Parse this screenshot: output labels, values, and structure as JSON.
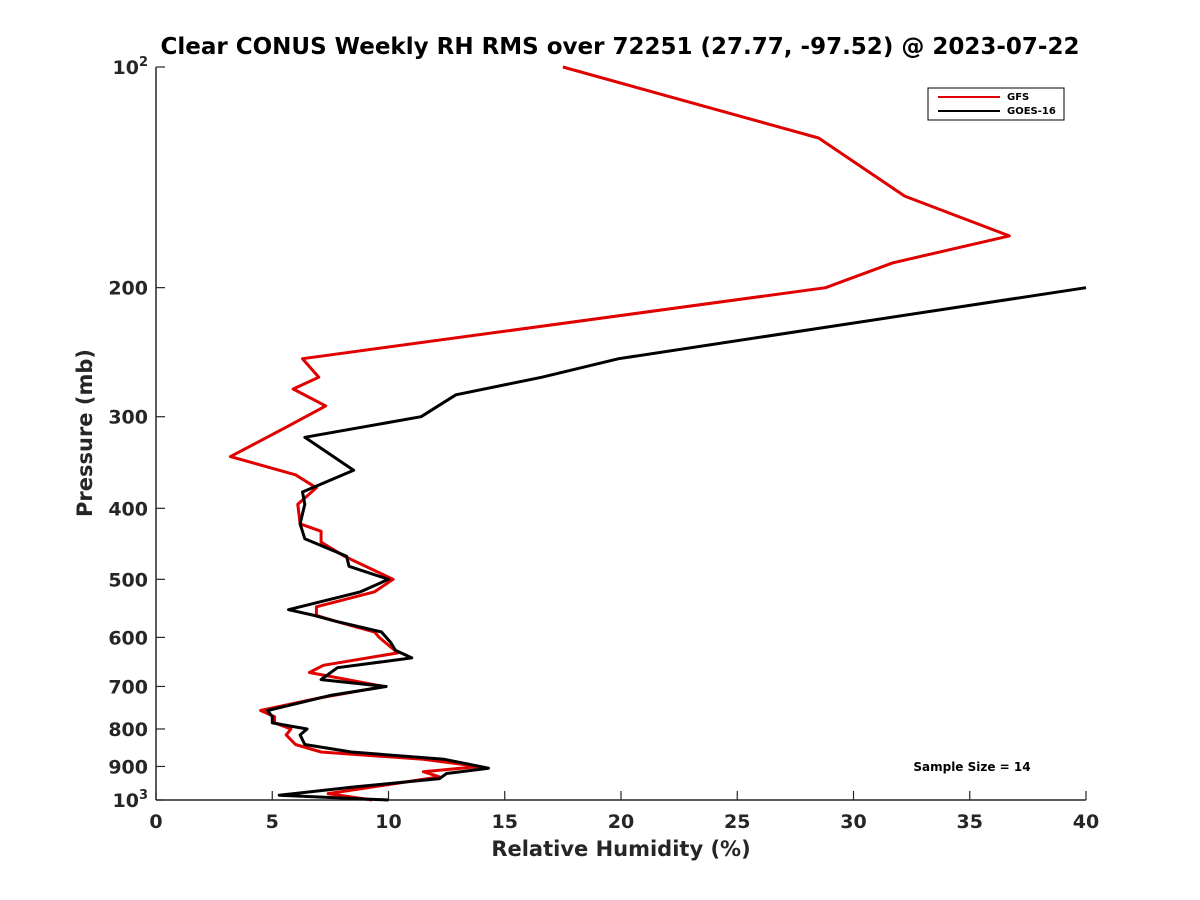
{
  "chart_data": {
    "type": "line",
    "title": "Clear CONUS Weekly RH RMS over 72251 (27.77, -97.52) @ 2023-07-22",
    "xlabel": "Relative Humidity (%)",
    "ylabel": "Pressure (mb)",
    "xlim": [
      0,
      40
    ],
    "ylim": [
      1000,
      100
    ],
    "yscale": "log",
    "y_reversed": true,
    "x_ticks": [
      0,
      5,
      10,
      15,
      20,
      25,
      30,
      35,
      40
    ],
    "x_tick_labels": [
      "0",
      "5",
      "10",
      "15",
      "20",
      "25",
      "30",
      "35",
      "40"
    ],
    "y_ticks": [
      100,
      200,
      300,
      400,
      500,
      600,
      700,
      800,
      900,
      1000
    ],
    "y_tick_labels": [
      "10^2",
      "200",
      "300",
      "400",
      "500",
      "600",
      "700",
      "800",
      "900",
      "10^3"
    ],
    "grid": false,
    "legend_position": "top-right",
    "annotation": "Sample Size = 14",
    "series": [
      {
        "name": "GFS",
        "color": "#e00000",
        "points": [
          [
            17.5,
            100
          ],
          [
            28.5,
            125
          ],
          [
            32.2,
            150
          ],
          [
            36.7,
            170
          ],
          [
            31.7,
            185
          ],
          [
            28.8,
            200
          ],
          [
            6.3,
            250
          ],
          [
            7.0,
            265
          ],
          [
            5.9,
            275
          ],
          [
            7.3,
            290
          ],
          [
            5.6,
            310
          ],
          [
            3.2,
            340
          ],
          [
            6.0,
            360
          ],
          [
            6.9,
            375
          ],
          [
            6.1,
            395
          ],
          [
            6.2,
            420
          ],
          [
            7.1,
            430
          ],
          [
            7.1,
            445
          ],
          [
            8.1,
            465
          ],
          [
            10.2,
            500
          ],
          [
            9.4,
            520
          ],
          [
            6.9,
            545
          ],
          [
            6.9,
            560
          ],
          [
            7.7,
            570
          ],
          [
            9.4,
            590
          ],
          [
            9.6,
            600
          ],
          [
            10.4,
            630
          ],
          [
            7.2,
            655
          ],
          [
            6.6,
            670
          ],
          [
            9.8,
            700
          ],
          [
            7.1,
            725
          ],
          [
            4.5,
            755
          ],
          [
            5.1,
            770
          ],
          [
            5.1,
            785
          ],
          [
            5.8,
            800
          ],
          [
            5.6,
            815
          ],
          [
            6.0,
            840
          ],
          [
            7.1,
            860
          ],
          [
            11.5,
            880
          ],
          [
            13.9,
            900
          ],
          [
            11.5,
            915
          ],
          [
            12.2,
            930
          ],
          [
            9.3,
            960
          ],
          [
            7.4,
            980
          ],
          [
            9.3,
            1000
          ]
        ]
      },
      {
        "name": "GOES-16",
        "color": "#000000",
        "points": [
          [
            40.0,
            200
          ],
          [
            19.9,
            250
          ],
          [
            16.6,
            265
          ],
          [
            12.9,
            280
          ],
          [
            11.4,
            300
          ],
          [
            6.4,
            320
          ],
          [
            8.5,
            355
          ],
          [
            6.3,
            380
          ],
          [
            6.4,
            395
          ],
          [
            6.2,
            420
          ],
          [
            6.4,
            440
          ],
          [
            8.2,
            465
          ],
          [
            8.3,
            480
          ],
          [
            10.0,
            500
          ],
          [
            8.8,
            520
          ],
          [
            5.7,
            550
          ],
          [
            6.8,
            560
          ],
          [
            7.7,
            570
          ],
          [
            9.7,
            590
          ],
          [
            10.1,
            610
          ],
          [
            10.3,
            625
          ],
          [
            11.0,
            640
          ],
          [
            7.8,
            660
          ],
          [
            7.1,
            685
          ],
          [
            9.9,
            700
          ],
          [
            7.5,
            720
          ],
          [
            4.8,
            755
          ],
          [
            5.0,
            770
          ],
          [
            5.0,
            785
          ],
          [
            6.5,
            800
          ],
          [
            6.2,
            815
          ],
          [
            6.4,
            840
          ],
          [
            8.4,
            860
          ],
          [
            12.4,
            880
          ],
          [
            14.3,
            905
          ],
          [
            12.5,
            920
          ],
          [
            12.2,
            935
          ],
          [
            8.5,
            960
          ],
          [
            5.3,
            985
          ],
          [
            10.0,
            1000
          ]
        ]
      }
    ]
  }
}
